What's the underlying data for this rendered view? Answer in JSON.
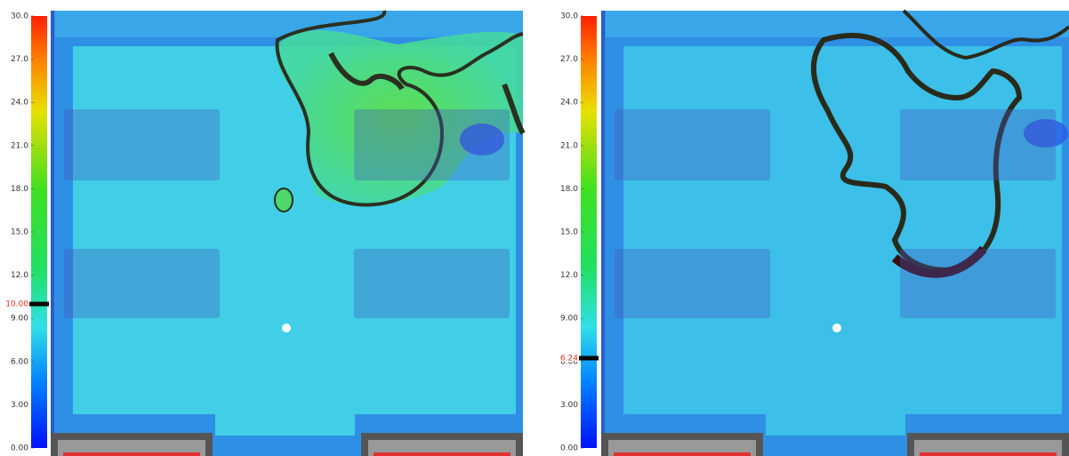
{
  "panels": [
    {
      "colorbar": {
        "range": [
          0,
          30
        ],
        "ticks": [
          {
            "value": 0,
            "label": "0.00"
          },
          {
            "value": 3,
            "label": "3.00"
          },
          {
            "value": 6,
            "label": "6.00"
          },
          {
            "value": 9,
            "label": "9.00"
          },
          {
            "value": 12,
            "label": "12.0"
          },
          {
            "value": 15,
            "label": "15.0"
          },
          {
            "value": 18,
            "label": "18.0"
          },
          {
            "value": 21,
            "label": "21.0"
          },
          {
            "value": 24,
            "label": "24.0"
          },
          {
            "value": 27,
            "label": "27.0"
          },
          {
            "value": 30,
            "label": "30.0"
          }
        ],
        "marker": {
          "value": 10,
          "label": "10.00"
        }
      }
    },
    {
      "colorbar": {
        "range": [
          0,
          30
        ],
        "ticks": [
          {
            "value": 0,
            "label": "0.00"
          },
          {
            "value": 3,
            "label": "3.00"
          },
          {
            "value": 6,
            "label": "6.00"
          },
          {
            "value": 9,
            "label": "9.00"
          },
          {
            "value": 12,
            "label": "12.0"
          },
          {
            "value": 15,
            "label": "15.0"
          },
          {
            "value": 18,
            "label": "18.0"
          },
          {
            "value": 21,
            "label": "21.0"
          },
          {
            "value": 24,
            "label": "24.0"
          },
          {
            "value": 27,
            "label": "27.0"
          },
          {
            "value": 30,
            "label": "30.0"
          }
        ],
        "marker": {
          "value": 6.24,
          "label": "6.24"
        }
      }
    }
  ]
}
